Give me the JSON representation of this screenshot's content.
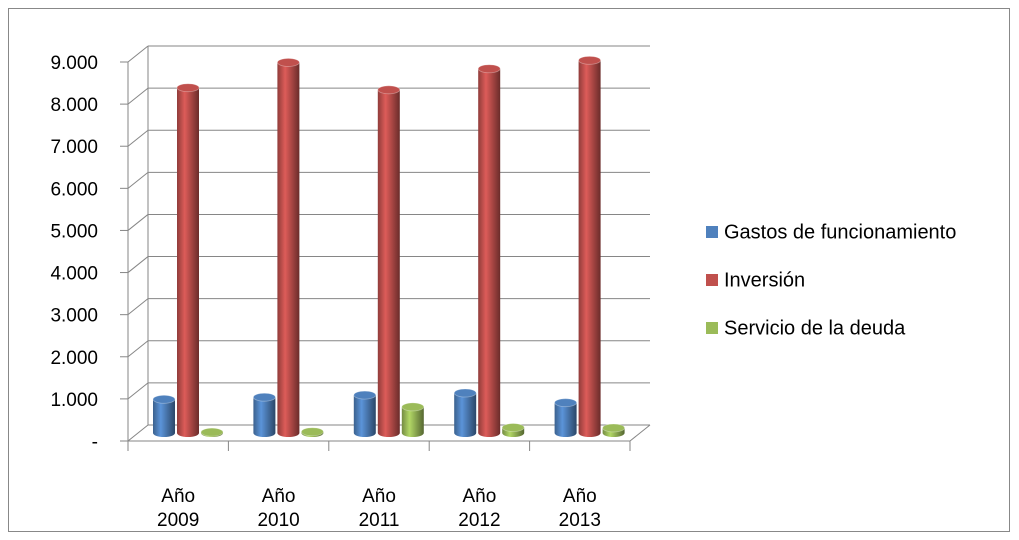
{
  "chart_data": {
    "type": "bar3d",
    "categories": [
      "Año 2009",
      "Año 2010",
      "Año 2011",
      "Año 2012",
      "Año 2013"
    ],
    "series": [
      {
        "name": "Gastos de funcionamiento",
        "color": "#4f81bd",
        "values": [
          800,
          850,
          900,
          950,
          720
        ]
      },
      {
        "name": "Inversión",
        "color": "#c0504d",
        "values": [
          8200,
          8800,
          8150,
          8650,
          8850
        ]
      },
      {
        "name": "Servicio de la deuda",
        "color": "#9bbb59",
        "values": [
          20,
          30,
          620,
          130,
          120
        ]
      }
    ],
    "ylim": [
      0,
      9000
    ],
    "yticks": [
      {
        "value": 0,
        "label": "-"
      },
      {
        "value": 1000,
        "label": "1.000"
      },
      {
        "value": 2000,
        "label": "2.000"
      },
      {
        "value": 3000,
        "label": "3.000"
      },
      {
        "value": 4000,
        "label": "4.000"
      },
      {
        "value": 5000,
        "label": "5.000"
      },
      {
        "value": 6000,
        "label": "6.000"
      },
      {
        "value": 7000,
        "label": "7.000"
      },
      {
        "value": 8000,
        "label": "8.000"
      },
      {
        "value": 9000,
        "label": "9.000"
      }
    ],
    "grid": true,
    "legend": "right"
  }
}
